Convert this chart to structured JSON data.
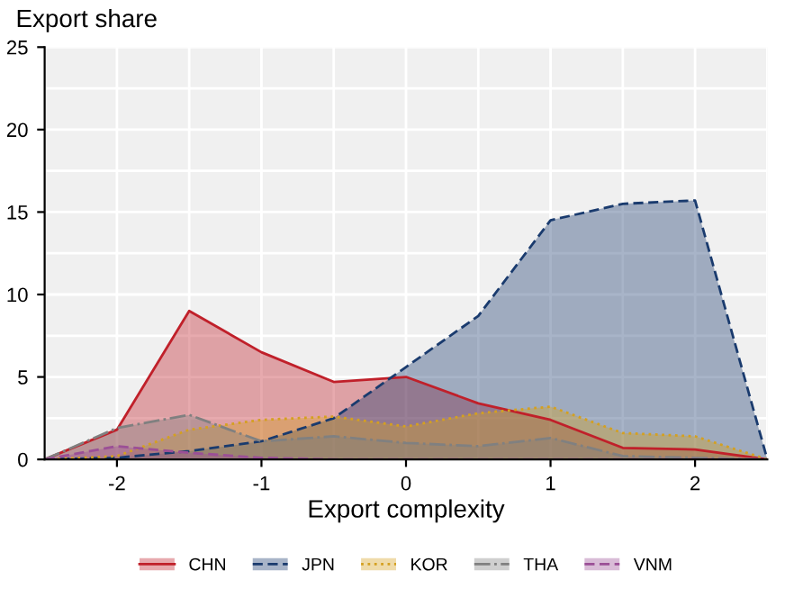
{
  "chart_data": {
    "type": "area",
    "title": "Export share",
    "xlabel": "Export complexity",
    "x": [
      -2.5,
      -2,
      -1.5,
      -1,
      -0.5,
      0,
      0.5,
      1,
      1.5,
      2,
      2.5
    ],
    "series": [
      {
        "name": "CHN",
        "color": "#c0202a",
        "line_style": "solid",
        "values": [
          0,
          1.8,
          9.0,
          6.5,
          4.7,
          5.0,
          3.4,
          2.4,
          0.7,
          0.6,
          0
        ]
      },
      {
        "name": "JPN",
        "color": "#1a3b6e",
        "line_style": "dashed",
        "values": [
          0,
          0.1,
          0.5,
          1.1,
          2.5,
          5.6,
          8.7,
          14.5,
          15.5,
          15.7,
          0
        ]
      },
      {
        "name": "KOR",
        "color": "#d4a020",
        "line_style": "dotted",
        "values": [
          0,
          0.2,
          1.8,
          2.4,
          2.6,
          2.0,
          2.8,
          3.2,
          1.6,
          1.4,
          0
        ]
      },
      {
        "name": "THA",
        "color": "#808080",
        "line_style": "dashdot",
        "values": [
          0,
          1.9,
          2.7,
          1.1,
          1.4,
          1.0,
          0.8,
          1.3,
          0.2,
          0.1,
          0
        ]
      },
      {
        "name": "VNM",
        "color": "#9b4f96",
        "line_style": "dashed",
        "values": [
          0,
          0.8,
          0.4,
          0.1,
          0,
          0,
          0,
          0,
          0,
          0,
          0
        ]
      }
    ],
    "xlim": [
      -2.5,
      2.5
    ],
    "ylim": [
      0,
      25
    ],
    "xticks": [
      {
        "value": -2.5,
        "label": null
      },
      -2,
      {
        "value": -1.5,
        "label": null
      },
      -1,
      {
        "value": -0.5,
        "label": null
      },
      0,
      {
        "value": 0.5,
        "label": null
      },
      1,
      {
        "value": 1.5,
        "label": null
      },
      2,
      {
        "value": 2.5,
        "label": null
      }
    ],
    "yticks": [
      0,
      {
        "value": 2.5,
        "label": null
      },
      5,
      {
        "value": 7.5,
        "label": null
      },
      10,
      {
        "value": 12.5,
        "label": null
      },
      15,
      {
        "value": 17.5,
        "label": null
      },
      20,
      {
        "value": 22.5,
        "label": null
      },
      25
    ],
    "grid": true,
    "legend": "bottom"
  }
}
